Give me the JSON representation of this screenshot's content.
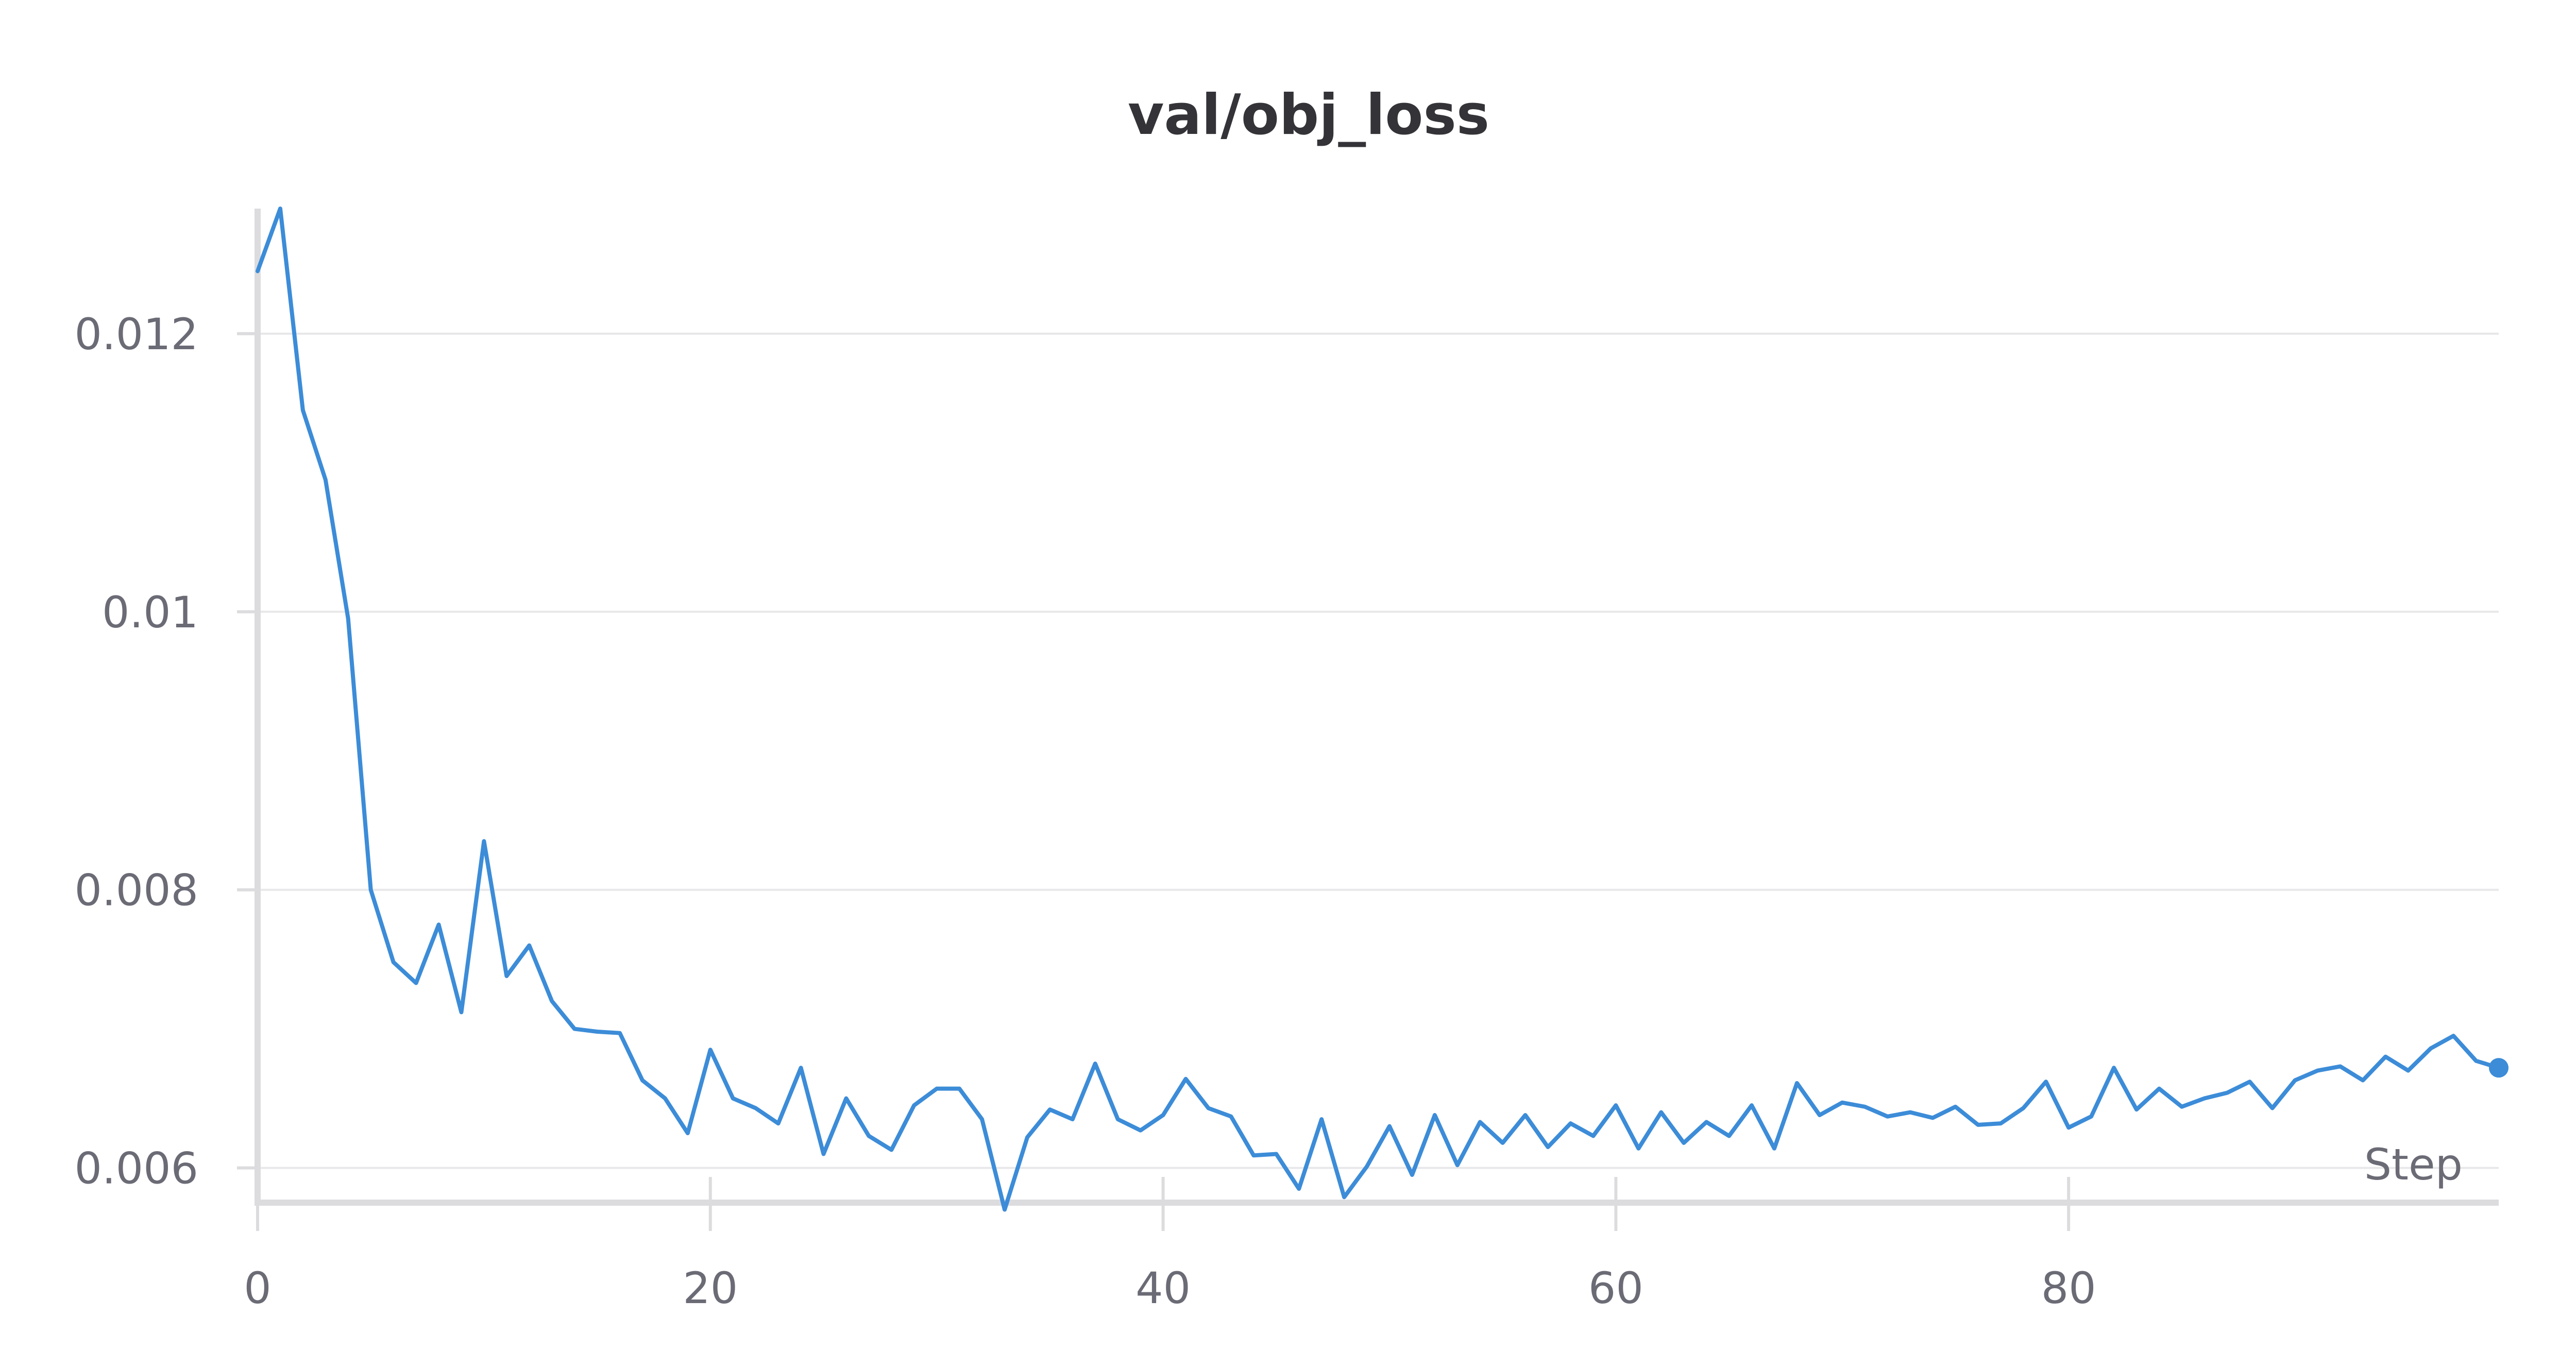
{
  "chart_data": {
    "type": "line",
    "title": "val/obj_loss",
    "xlabel": "Step",
    "ylabel": "",
    "xlim": [
      0,
      99
    ],
    "ylim": [
      0.00575,
      0.0129
    ],
    "x_ticks": [
      0,
      20,
      40,
      60,
      80
    ],
    "x_tick_labels": [
      "0",
      "20",
      "40",
      "60",
      "80"
    ],
    "y_ticks": [
      0.006,
      0.008,
      0.01,
      0.012
    ],
    "y_tick_labels": [
      "0.006",
      "0.008",
      "0.01",
      "0.012"
    ],
    "grid": true,
    "legend": "none",
    "colors": {
      "series": "#3c8cd8",
      "grid": "#e8e8ea",
      "axis": "#dcdcdf",
      "title": "#333338",
      "tick_text": "#6b6b76"
    },
    "series": [
      {
        "values": [
          0.01245,
          0.0129,
          0.01145,
          0.01095,
          0.00995,
          0.008,
          0.00748,
          0.00733,
          0.00775,
          0.00712,
          0.00835,
          0.00738,
          0.0076,
          0.0072,
          0.007,
          0.00698,
          0.00697,
          0.00663,
          0.0065,
          0.00625,
          0.00685,
          0.0065,
          0.00643,
          0.00632,
          0.00672,
          0.0061,
          0.0065,
          0.00623,
          0.00613,
          0.00645,
          0.00657,
          0.00657,
          0.00635,
          0.0057,
          0.00622,
          0.00642,
          0.00635,
          0.00675,
          0.00635,
          0.00627,
          0.00638,
          0.00664,
          0.00643,
          0.00637,
          0.00609,
          0.0061,
          0.00585,
          0.00635,
          0.00579,
          0.00601,
          0.0063,
          0.00595,
          0.00638,
          0.00602,
          0.00633,
          0.00618,
          0.00638,
          0.00615,
          0.00632,
          0.00623,
          0.00645,
          0.00614,
          0.0064,
          0.00618,
          0.00633,
          0.00623,
          0.00645,
          0.00614,
          0.00661,
          0.00638,
          0.00647,
          0.00644,
          0.00637,
          0.0064,
          0.00636,
          0.00644,
          0.00631,
          0.00632,
          0.00643,
          0.00662,
          0.00629,
          0.00637,
          0.00672,
          0.00642,
          0.00657,
          0.00644,
          0.0065,
          0.00654,
          0.00662,
          0.00643,
          0.00663,
          0.0067,
          0.00673,
          0.00663,
          0.0068,
          0.0067,
          0.00686,
          0.00695,
          0.00677,
          0.00672
        ]
      }
    ]
  }
}
